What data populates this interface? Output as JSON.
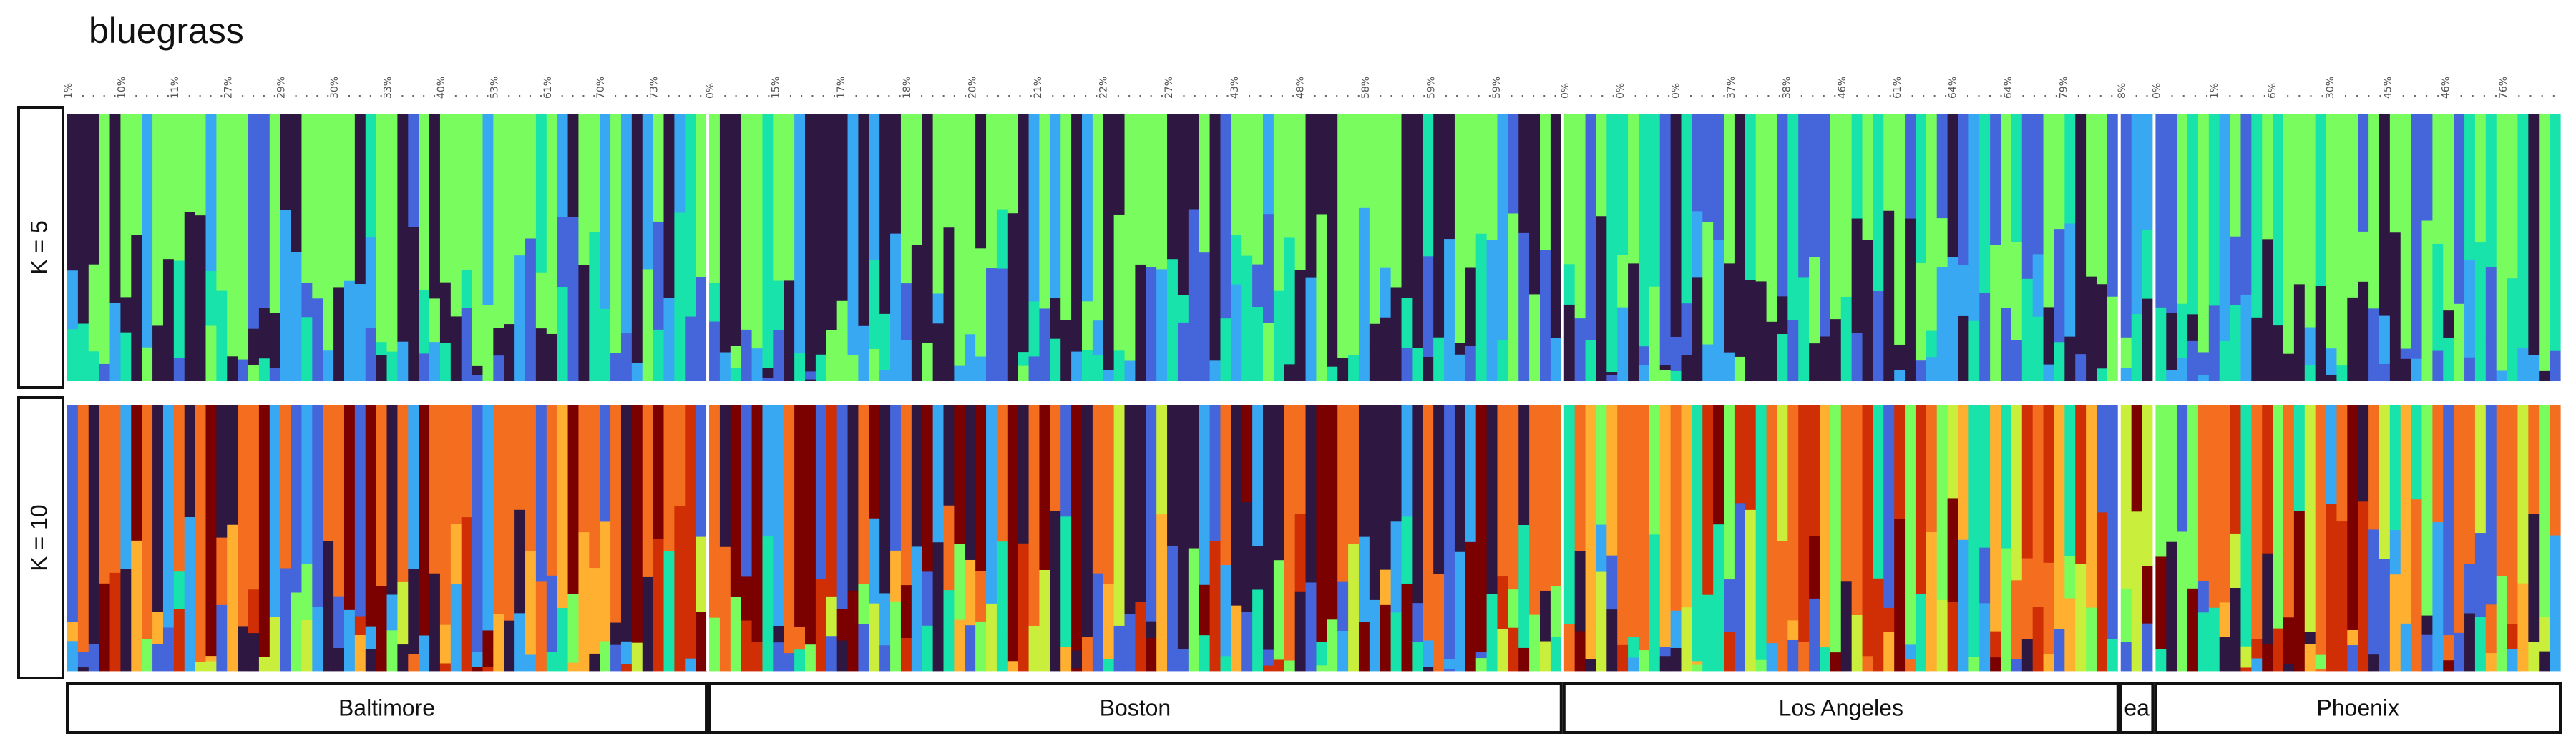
{
  "title": "bluegrass",
  "panels": [
    {
      "label": "K = 5",
      "k": 5
    },
    {
      "label": "K = 10",
      "k": 10
    }
  ],
  "palette_k5": [
    "#79FC5E",
    "#2E1740",
    "#39A8F2",
    "#17E3AA",
    "#4565DB"
  ],
  "palette_k10": [
    "#F46E1F",
    "#2E1740",
    "#39A8F2",
    "#7B0000",
    "#C9EE3B",
    "#4565DB",
    "#D02E04",
    "#FFB030",
    "#17E3AA",
    "#79FC5E"
  ],
  "chart_data": {
    "type": "stacked-bar",
    "title": "bluegrass",
    "populations": [
      {
        "name": "Baltimore",
        "n": 60
      },
      {
        "name": "Boston",
        "n": 80
      },
      {
        "name": "Los Angeles",
        "n": 52
      },
      {
        "name": "ea",
        "n": 3
      },
      {
        "name": "Phoenix",
        "n": 38
      }
    ],
    "tick_labels": [
      [
        "1%",
        "10%",
        "11%",
        "27%",
        "29%",
        "30%",
        "33%",
        "40%",
        "53%",
        "61%",
        "70%",
        "73%"
      ],
      [
        "0%",
        "15%",
        "17%",
        "18%",
        "20%",
        "21%",
        "22%",
        "27%",
        "43%",
        "48%",
        "58%",
        "59%",
        "59%"
      ],
      [
        "0%",
        "0%",
        "0%",
        "37%",
        "38%",
        "46%",
        "61%",
        "64%",
        "64%",
        "79%"
      ],
      [
        "8%"
      ],
      [
        "0%",
        "1%",
        "6%",
        "30%",
        "45%",
        "46%",
        "76%"
      ]
    ],
    "k5_segments": [
      [
        [
          [
            0,
            4
          ],
          [
            0,
            0.97
          ],
          [
            0,
            1
          ],
          [
            0,
            0.95
          ],
          [
            0,
            1
          ],
          [
            1,
            1
          ],
          [
            0,
            0.02,
            1,
            0.78
          ],
          [
            0,
            1
          ],
          [
            0,
            0.4,
            3,
            0.6
          ],
          [
            0,
            0.7,
            3,
            0.3
          ],
          [
            0,
            0.55,
            3,
            0.45
          ],
          [
            0,
            0.98
          ],
          [
            0,
            1
          ],
          [
            0,
            1
          ],
          [
            0,
            0.95
          ],
          [
            1,
            0.15,
            0,
            0.85
          ],
          [
            1,
            0.4,
            2,
            0.2,
            0,
            0.4
          ],
          [
            1,
            0.9,
            0,
            0.1
          ],
          [
            2,
            0.9,
            4,
            0.1
          ],
          [
            0,
            0.55,
            3,
            0.45
          ],
          [
            0,
            1
          ],
          [
            0,
            0.9
          ],
          [
            1,
            0.45,
            0,
            0.55
          ],
          [
            1,
            0.25,
            0,
            0.75
          ],
          [
            1,
            0.5,
            0,
            0.5
          ],
          [
            1,
            0.6,
            0,
            0.4
          ],
          [
            1,
            0.1,
            0,
            0.9
          ],
          [
            1,
            0.65,
            0,
            0.35
          ],
          [
            0,
            1
          ],
          [
            0,
            1
          ],
          [
            0,
            1
          ],
          [
            0,
            0.9,
            1,
            0.1
          ],
          [
            0,
            1
          ],
          [
            0,
            1
          ],
          [
            0,
            0.95
          ],
          [
            1,
            0.1,
            0,
            0.9
          ],
          [
            0,
            1
          ],
          [
            1,
            0.4,
            2,
            0.2,
            3,
            0.1,
            0,
            0.3
          ],
          [
            0,
            0.85,
            2,
            0.15
          ],
          [
            4,
            0.3,
            0,
            0.7
          ],
          [
            0,
            0.95
          ],
          [
            4,
            0.8,
            0,
            0.2
          ],
          [
            2,
            0.4,
            0,
            0.6
          ],
          [
            0,
            1
          ],
          [
            4,
            0.5,
            2,
            0.3,
            0,
            0.2
          ],
          [
            0,
            0.9,
            2,
            0.1
          ],
          [
            0,
            1
          ]
        ]
      ]
    ]
  }
}
